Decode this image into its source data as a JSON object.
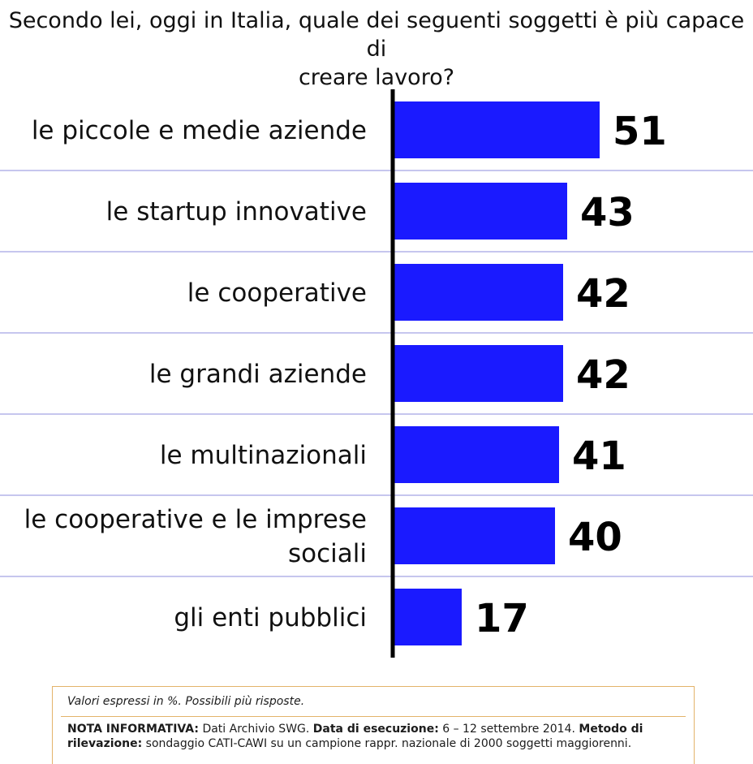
{
  "title": {
    "line1": "Secondo lei, oggi in Italia, quale dei seguenti soggetti è più capace di",
    "line2": "creare lavoro?"
  },
  "colors": {
    "bar": "#1a1aff",
    "axis": "#000000",
    "separator": "#8c8cdc",
    "note_border": "#e3b36a"
  },
  "chart_data": {
    "type": "bar",
    "orientation": "horizontal",
    "categories": [
      [
        "le piccole e medie aziende"
      ],
      [
        "le startup innovative"
      ],
      [
        "le cooperative"
      ],
      [
        "le grandi aziende"
      ],
      [
        "le multinazionali"
      ],
      [
        "le cooperative e le imprese",
        "sociali"
      ],
      [
        "gli enti pubblici"
      ]
    ],
    "values": [
      51,
      43,
      42,
      42,
      41,
      40,
      17
    ],
    "unit": "%",
    "data_labels": true,
    "grid": false
  },
  "note": {
    "top": "Valori espressi in %. Possibili più risposte.",
    "nota_label": "NOTA INFORMATIVA:",
    "nota_text": "Dati Archivio SWG.",
    "data_label": "Data di esecuzione:",
    "data_text": "6 – 12 settembre 2014.",
    "metodo_label": "Metodo di rilevazione:",
    "metodo_text": "sondaggio CATI-CAWI su un campione rappr. nazionale di 2000 soggetti maggiorenni."
  }
}
